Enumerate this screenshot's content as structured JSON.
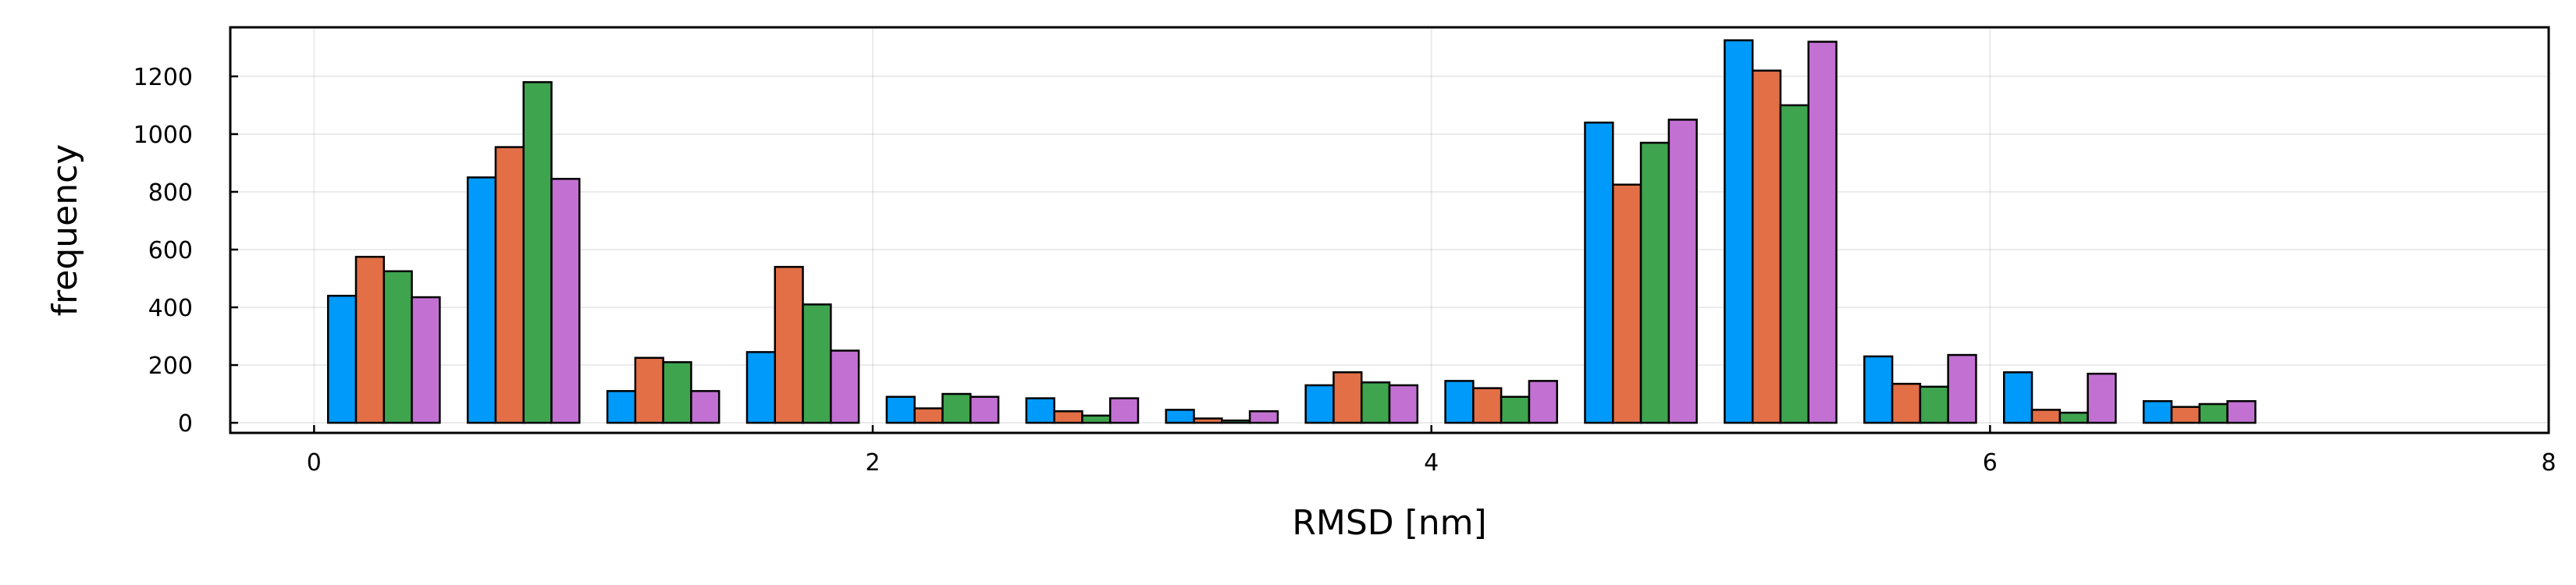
{
  "chart_data": {
    "type": "bar",
    "title": "",
    "xlabel": "RMSD [nm]",
    "ylabel": "frequency",
    "xlim": [
      -0.3,
      8
    ],
    "ylim": [
      -35,
      1370
    ],
    "xticks": [
      0,
      2,
      4,
      6,
      8
    ],
    "yticks": [
      0,
      200,
      400,
      600,
      800,
      1000,
      1200
    ],
    "grid": true,
    "legend": "none",
    "bin_width": 0.5,
    "bin_centers": [
      0.25,
      0.75,
      1.25,
      1.75,
      2.25,
      2.75,
      3.25,
      3.75,
      4.25,
      4.75,
      5.25,
      5.75,
      6.25,
      6.75
    ],
    "series": [
      {
        "color": "#009AFA",
        "values": [
          440,
          850,
          110,
          245,
          90,
          85,
          45,
          130,
          145,
          1040,
          1325,
          230,
          175,
          75
        ]
      },
      {
        "color": "#E26F46",
        "values": [
          575,
          955,
          225,
          540,
          50,
          40,
          15,
          175,
          120,
          825,
          1220,
          135,
          45,
          55
        ]
      },
      {
        "color": "#3EA44E",
        "values": [
          525,
          1180,
          210,
          410,
          100,
          25,
          8,
          140,
          90,
          970,
          1100,
          125,
          35,
          65
        ]
      },
      {
        "color": "#C271D2",
        "values": [
          435,
          845,
          110,
          250,
          90,
          85,
          40,
          130,
          145,
          1050,
          1320,
          235,
          170,
          75
        ]
      }
    ]
  }
}
